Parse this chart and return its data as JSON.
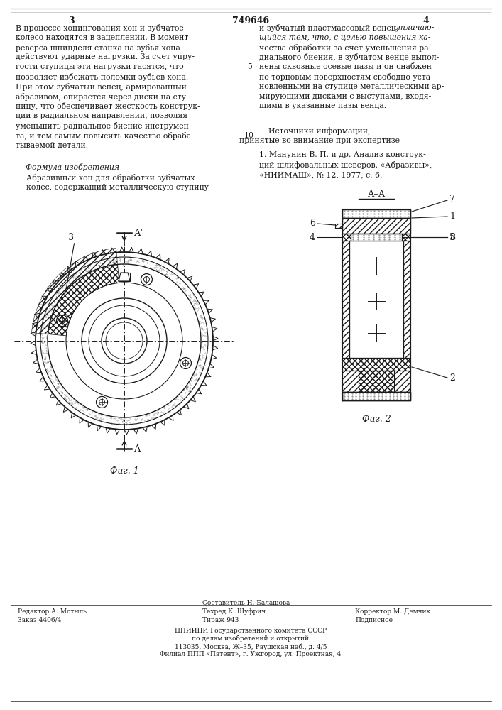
{
  "patent_number": "749646",
  "page_left": "3",
  "page_right": "4",
  "background_color": "#ffffff",
  "text_color": "#1a1a1a",
  "line_color": "#1a1a1a",
  "col1_text": [
    "В процессе хонингования хон и зубчатое",
    "колесо находятся в зацеплении. В момент",
    "реверса шпинделя станка на зубья хона",
    "действуют ударные нагрузки. За счет упру-",
    "гости ступицы эти нагрузки гасятся, что",
    "позволяет избежать поломки зубьев хона.",
    "При этом зубчатый венец, армированный",
    "абразивом, опирается через диски на сту-",
    "пицу, что обеспечивает жесткость конструк-",
    "ции в радиальном направлении, позволяя",
    "уменьшить радиальное биение инструмен-",
    "та, и тем самым повысить качество обраба-",
    "тываемой детали."
  ],
  "formula_title": "Формула изобретения",
  "formula_text": [
    "Абразивный хон для обработки зубчатых",
    "колес, содержащий металлическую ступицу"
  ],
  "col2_text_plain": [
    "чества обработки за счет уменьшения ра-",
    "диального биения, в зубчатом венце выпол-",
    "нены сквозные осевые пазы и он снабжен",
    "по торцовым поверхностям свободно уста-",
    "новленными на ступице металлическими ар-",
    "мирующими дисками с выступами, входя-",
    "щими в указанные пазы венца."
  ],
  "sources_title": "Источники информации,",
  "sources_subtitle": "принятые во внимание при экспертизе",
  "source1a": "1. Манунин В. П. и др. Анализ конструк-",
  "source1b": "ций шлифовальных шеверов. «Абразивы»,",
  "source1c": "«НИИМАШ», № 12, 1977, с. 6.",
  "fig1_label": "Фиг. 1",
  "fig2_label": "Фиг. 2",
  "section_label": "А–А",
  "footer_left1": "Редактор А. Мотыль",
  "footer_left2": "Заказ 4406/4",
  "footer_mid1": "Составитель Н. Балашова",
  "footer_mid2": "Техред К. Шуфрич",
  "footer_mid3": "Тираж 943",
  "footer_right1": "Корректор М. Демчик",
  "footer_right2": "Подписное",
  "footer_org1": "ЦНИИПИ Государственного комитета СССР",
  "footer_org2": "по делам изобретений и открытий",
  "footer_org3": "113035, Москва, Ж–35, Раушская наб., д. 4/5",
  "footer_org4": "Филиал ППП «Патент», г. Ужгород, ул. Проектная, 4"
}
